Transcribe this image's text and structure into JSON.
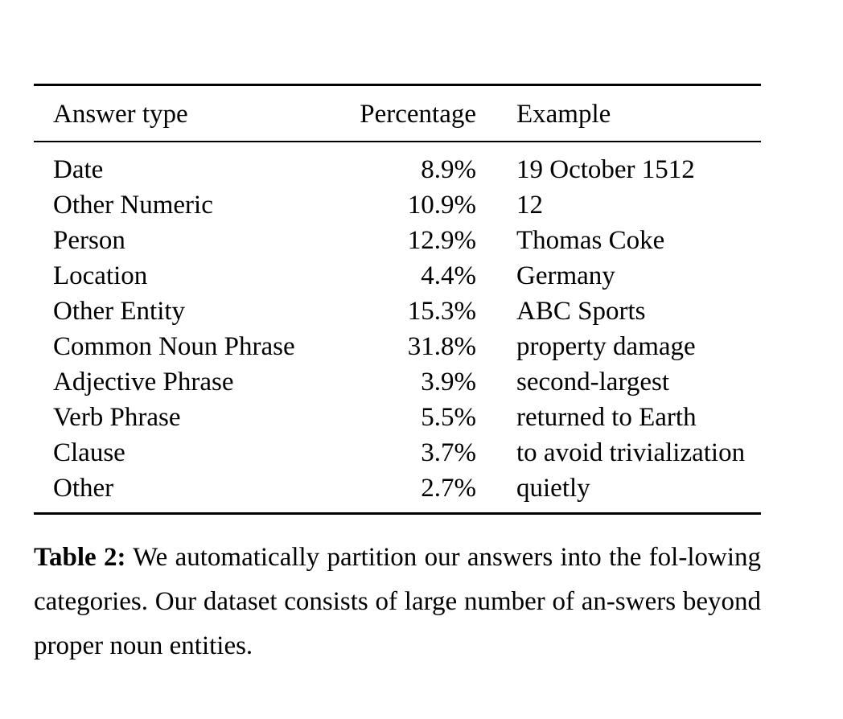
{
  "table": {
    "headers": {
      "answer_type": "Answer type",
      "percentage": "Percentage",
      "example": "Example"
    },
    "rows": [
      {
        "type": "Date",
        "percentage": "8.9%",
        "example": "19 October 1512"
      },
      {
        "type": "Other Numeric",
        "percentage": "10.9%",
        "example": "12"
      },
      {
        "type": "Person",
        "percentage": "12.9%",
        "example": "Thomas Coke"
      },
      {
        "type": "Location",
        "percentage": "4.4%",
        "example": "Germany"
      },
      {
        "type": "Other Entity",
        "percentage": "15.3%",
        "example": "ABC Sports"
      },
      {
        "type": "Common Noun Phrase",
        "percentage": "31.8%",
        "example": "property damage"
      },
      {
        "type": "Adjective Phrase",
        "percentage": "3.9%",
        "example": "second-largest"
      },
      {
        "type": "Verb Phrase",
        "percentage": "5.5%",
        "example": "returned to Earth"
      },
      {
        "type": "Clause",
        "percentage": "3.7%",
        "example": "to avoid trivialization"
      },
      {
        "type": "Other",
        "percentage": "2.7%",
        "example": "quietly"
      }
    ]
  },
  "caption": {
    "label": "Table 2:",
    "text": "We automatically partition our answers into the fol-lowing categories. Our dataset consists of large number of an-swers beyond proper noun entities."
  }
}
